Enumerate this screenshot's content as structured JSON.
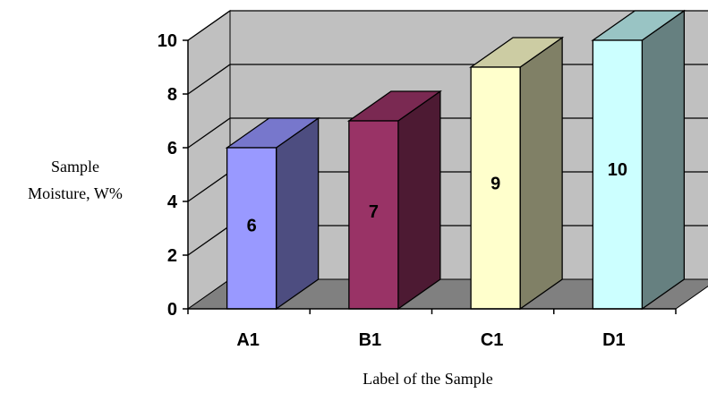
{
  "chart_data": {
    "type": "bar",
    "style": "3d-column",
    "categories": [
      "A1",
      "B1",
      "C1",
      "D1"
    ],
    "values": [
      6,
      7,
      9,
      10
    ],
    "data_labels": [
      "6",
      "7",
      "9",
      "10"
    ],
    "xlabel": "Label of the Sample",
    "ylabel_lines": [
      "Sample",
      "Moisture, W%"
    ],
    "ylim": [
      0,
      10
    ],
    "yticks": [
      0,
      2,
      4,
      6,
      8,
      10
    ],
    "grid": true,
    "legend": "none",
    "colors": {
      "wall": "#c0c0c0",
      "floor": "#808080",
      "bars": [
        {
          "front": "#9999ff",
          "side": "#4d4d80",
          "top": "#7777cc"
        },
        {
          "front": "#993366",
          "side": "#4d1a33",
          "top": "#7a2952"
        },
        {
          "front": "#ffffcc",
          "side": "#808066",
          "top": "#cccca3"
        },
        {
          "front": "#ccffff",
          "side": "#668080",
          "top": "#99c4c4"
        }
      ]
    }
  }
}
